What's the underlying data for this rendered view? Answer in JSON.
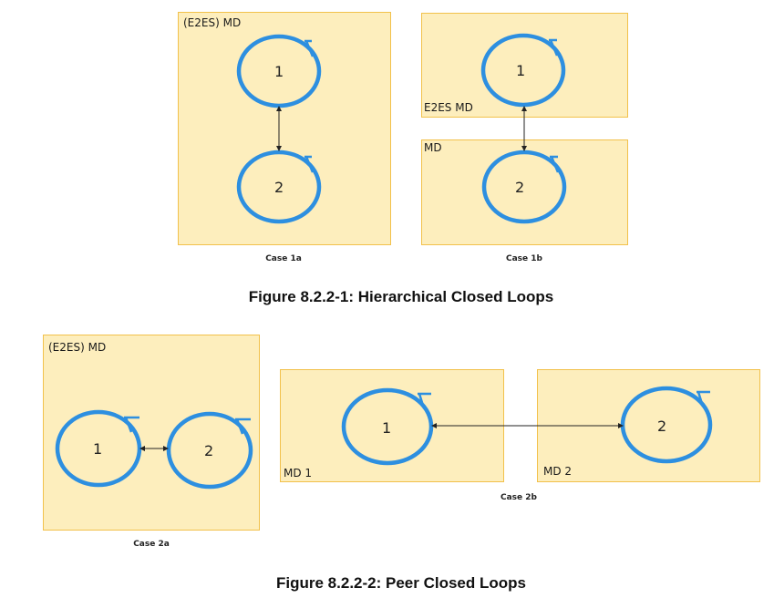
{
  "figure1": {
    "caption": "Figure 8.2.2-1: Hierarchical Closed Loops",
    "case_1a": {
      "box_label": "(E2ES) MD",
      "loop_top": "1",
      "loop_bottom": "2",
      "case_label": "Case 1a"
    },
    "case_1b": {
      "top_box_label": "E2ES MD",
      "bottom_box_label": "MD",
      "loop_top": "1",
      "loop_bottom": "2",
      "case_label": "Case 1b"
    }
  },
  "figure2": {
    "caption": "Figure 8.2.2-2: Peer Closed Loops",
    "case_2a": {
      "box_label": "(E2ES) MD",
      "loop_left": "1",
      "loop_right": "2",
      "case_label": "Case 2a"
    },
    "case_2b": {
      "left_box_label": "MD 1",
      "right_box_label": "MD 2",
      "loop_left": "1",
      "loop_right": "2",
      "case_label": "Case 2b"
    }
  },
  "colors": {
    "box_fill": "#fdeebd",
    "box_border": "#f2c14b",
    "loop_stroke": "#2d8fe0",
    "arrow": "#222222"
  },
  "icons": {
    "loop": "closed-loop-icon",
    "arrow": "bidirectional-arrow-icon"
  }
}
